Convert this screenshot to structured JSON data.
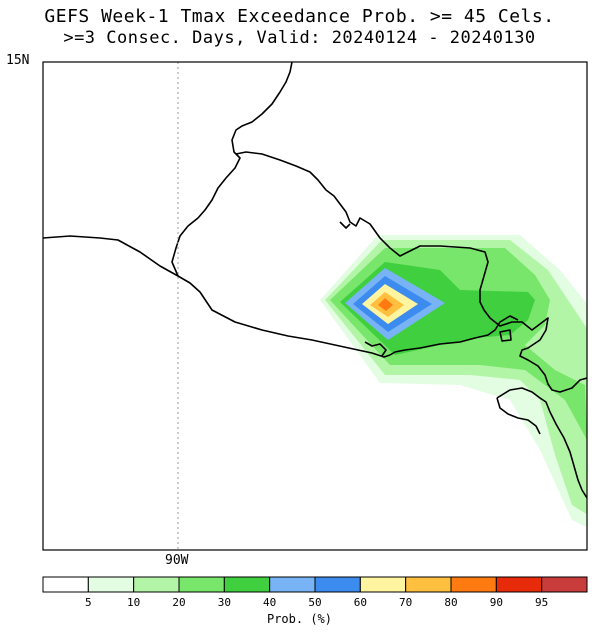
{
  "title_line1": "GEFS Week-1 Tmax Exceedance Prob. >= 45 Cels.",
  "title_line2": ">=3 Consec. Days, Valid: 20240124 - 20240130",
  "lat_label": "15N",
  "lon_label": "90W",
  "colorbar": {
    "title": "Prob. (%)",
    "ticks": [
      "5",
      "10",
      "20",
      "30",
      "40",
      "50",
      "60",
      "70",
      "80",
      "90",
      "95"
    ],
    "colors": [
      "#ffffff",
      "#e3fde3",
      "#b3f5a6",
      "#78e66a",
      "#3fcf3f",
      "#78b3f5",
      "#3c8cf0",
      "#fff5a0",
      "#ffc040",
      "#ff7a10",
      "#e62a0a",
      "#c83c3c"
    ]
  },
  "map_colors": {
    "p5": "#e3fde3",
    "p10": "#b3f5a6",
    "p20": "#78e66a",
    "p30": "#3fcf3f",
    "p40": "#78b3f5",
    "p50": "#3c8cf0",
    "p60": "#fff5a0",
    "p70": "#ffc040",
    "p80": "#ff7a10"
  }
}
